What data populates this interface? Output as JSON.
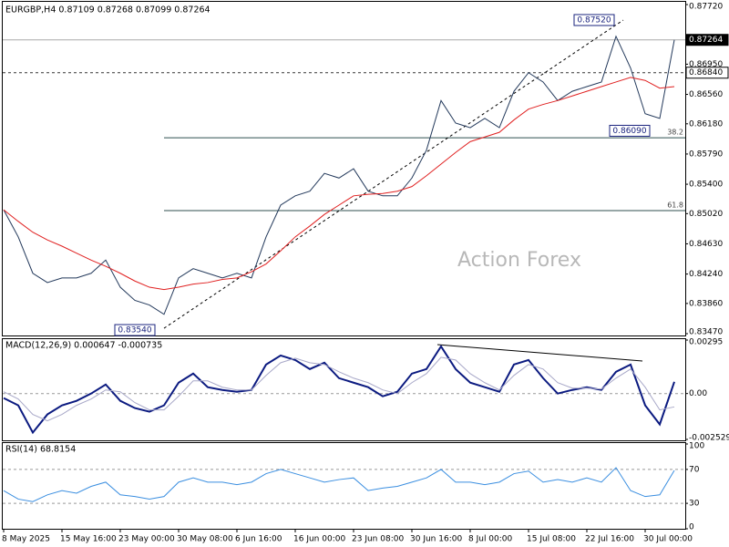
{
  "chart_data": [
    {
      "type": "line",
      "title": "EURGBP,H4  0.87109 0.87268 0.87099 0.87264",
      "watermark": "Action Forex",
      "ylim": [
        0.8347,
        0.8772
      ],
      "yticks": [
        {
          "value": 0.8772,
          "label": "0.87720"
        },
        {
          "value": 0.8695,
          "label": "0.86950"
        },
        {
          "value": 0.8656,
          "label": "0.86560"
        },
        {
          "value": 0.8618,
          "label": "0.86180"
        },
        {
          "value": 0.8579,
          "label": "0.85790"
        },
        {
          "value": 0.854,
          "label": "0.85400"
        },
        {
          "value": 0.8502,
          "label": "0.85020"
        },
        {
          "value": 0.8463,
          "label": "0.84630"
        },
        {
          "value": 0.8424,
          "label": "0.84240"
        },
        {
          "value": 0.8386,
          "label": "0.83860"
        },
        {
          "value": 0.8347,
          "label": "0.83470"
        }
      ],
      "grid": false,
      "price_lines": [
        {
          "value": 0.87264,
          "label": "0.87264",
          "style": "solid"
        },
        {
          "value": 0.8684,
          "label": "0.86840",
          "style": "dashed"
        }
      ],
      "levels": [
        {
          "value": 0.86,
          "label": "38.2"
        },
        {
          "value": 0.8506,
          "label": "61.8"
        }
      ],
      "annotations": [
        {
          "value": 0.8354,
          "label": "0.83540"
        },
        {
          "value": 0.8752,
          "label": "0.87520"
        },
        {
          "value": 0.8609,
          "label": "0.86090"
        }
      ],
      "series": [
        {
          "color": "#23395b",
          "width": 1,
          "values": [
            0.8507,
            0.8472,
            0.8425,
            0.8413,
            0.8419,
            0.8419,
            0.8425,
            0.8442,
            0.8407,
            0.839,
            0.8384,
            0.8372,
            0.8419,
            0.8431,
            0.8425,
            0.8419,
            0.8425,
            0.8419,
            0.8472,
            0.8513,
            0.8525,
            0.8531,
            0.8554,
            0.8548,
            0.856,
            0.8531,
            0.8525,
            0.8525,
            0.8548,
            0.8584,
            0.8648,
            0.8619,
            0.8613,
            0.8625,
            0.8613,
            0.866,
            0.8684,
            0.8672,
            0.8648,
            0.866,
            0.8666,
            0.8672,
            0.8731,
            0.869,
            0.8631,
            0.8625,
            0.87264
          ]
        },
        {
          "color": "#e02020",
          "width": 1,
          "values": [
            0.8507,
            0.8492,
            0.8478,
            0.8468,
            0.846,
            0.8451,
            0.8442,
            0.8434,
            0.8425,
            0.8415,
            0.8407,
            0.8404,
            0.8407,
            0.8411,
            0.8413,
            0.8417,
            0.8419,
            0.8427,
            0.8437,
            0.8454,
            0.8472,
            0.8486,
            0.8501,
            0.8513,
            0.8525,
            0.8527,
            0.8528,
            0.8531,
            0.8537,
            0.8551,
            0.8566,
            0.8581,
            0.8595,
            0.8601,
            0.8607,
            0.8623,
            0.8637,
            0.8643,
            0.8648,
            0.8654,
            0.866,
            0.8666,
            0.8672,
            0.8678,
            0.8674,
            0.8664,
            0.8666
          ]
        }
      ]
    },
    {
      "type": "line",
      "title": "MACD(12,26,9) 0.000647 -0.000735",
      "ylim": [
        -0.002529,
        0.00295
      ],
      "yticks": [
        {
          "value": 0.00295,
          "label": "0.00295"
        },
        {
          "value": 0,
          "label": "0.00"
        },
        {
          "value": -0.002529,
          "label": "-0.002529"
        }
      ],
      "grid": true,
      "series": [
        {
          "color": "#0b1a80",
          "width": 2,
          "values": [
            -0.00025,
            -0.00065,
            -0.00215,
            -0.00115,
            -0.00065,
            -0.0004,
            0,
            0.0005,
            -0.0004,
            -0.0008,
            -0.001,
            -0.00065,
            0.0006,
            0.0011,
            0.00035,
            0.0002,
            0.0001,
            0.0002,
            0.0016,
            0.0021,
            0.00185,
            0.00135,
            0.0017,
            0.00085,
            0.0006,
            0.00035,
            -0.00015,
            0.0001,
            0.0011,
            0.00135,
            0.0026,
            0.00135,
            0.0006,
            0.00035,
            0.0001,
            0.0016,
            0.00185,
            0.00085,
            0,
            0.0002,
            0.00035,
            0.0002,
            0.0012,
            0.0016,
            -0.00065,
            -0.0017,
            0.000647
          ]
        },
        {
          "color": "#a8a8c8",
          "width": 1,
          "values": [
            0.0001,
            -0.0003,
            -0.00115,
            -0.0015,
            -0.00115,
            -0.00065,
            -0.0003,
            0.0002,
            0.0001,
            -0.0005,
            -0.0009,
            -0.0009,
            -0.00015,
            0.0007,
            0.0007,
            0.00035,
            0.0002,
            0.0002,
            0.001,
            0.0017,
            0.00195,
            0.0017,
            0.0016,
            0.0012,
            0.00085,
            0.0006,
            0.0002,
            0,
            0.0006,
            0.0011,
            0.002,
            0.00185,
            0.0011,
            0.0006,
            0.0002,
            0.001,
            0.0016,
            0.00135,
            0.0006,
            0.0003,
            0.0003,
            0.00025,
            0.00085,
            0.00135,
            0.00035,
            -0.0009,
            -0.000735
          ]
        }
      ]
    },
    {
      "type": "line",
      "title": "RSI(14) 68.8154",
      "ylim": [
        0,
        100
      ],
      "yticks": [
        100,
        70,
        30,
        0
      ],
      "grid": true,
      "categories": [
        "8 May 2025",
        null,
        null,
        null,
        "15 May 16:00",
        null,
        null,
        null,
        "23 May 00:00",
        null,
        null,
        null,
        "30 May 08:00",
        null,
        null,
        null,
        "6 Jun 16:00",
        null,
        null,
        null,
        "16 Jun 00:00",
        null,
        null,
        null,
        "23 Jun 08:00",
        null,
        null,
        null,
        "30 Jun 16:00",
        null,
        null,
        null,
        "8 Jul 00:00",
        null,
        null,
        null,
        "15 Jul 08:00",
        null,
        null,
        null,
        "22 Jul 16:00",
        null,
        null,
        null,
        "30 Jul 00:00",
        null,
        null
      ],
      "series": [
        {
          "color": "#3a8ee0",
          "width": 1,
          "values": [
            45,
            35,
            32,
            40,
            45,
            42,
            50,
            55,
            40,
            38,
            35,
            38,
            55,
            60,
            55,
            55,
            52,
            55,
            65,
            70,
            65,
            60,
            55,
            58,
            60,
            45,
            48,
            50,
            55,
            60,
            70,
            55,
            55,
            52,
            55,
            65,
            68,
            55,
            58,
            55,
            60,
            55,
            72,
            45,
            38,
            40,
            68.8154
          ]
        }
      ]
    }
  ]
}
